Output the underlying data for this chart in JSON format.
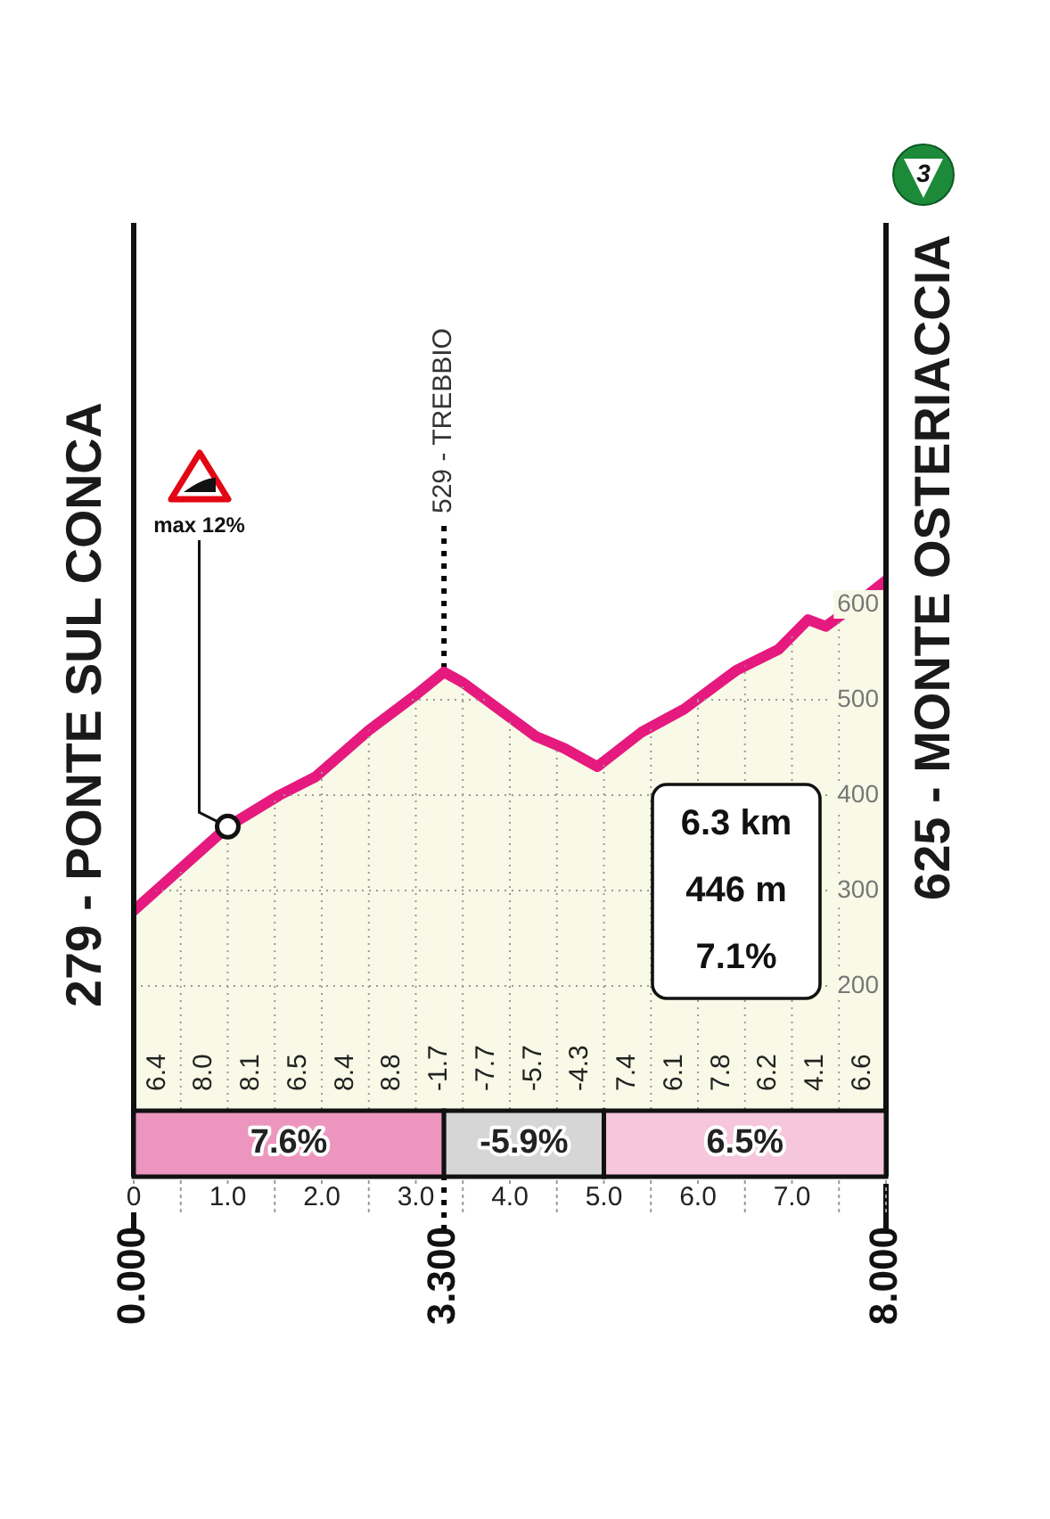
{
  "chart_data": {
    "type": "area",
    "color": "#e6197f",
    "x": [
      0,
      1.0,
      1.55,
      1.93,
      2.5,
      3.0,
      3.3,
      3.5,
      4.27,
      4.58,
      4.93,
      5.4,
      5.85,
      6.41,
      6.86,
      7.17,
      7.36,
      7.68,
      8.0
    ],
    "values": [
      279,
      367,
      400,
      419,
      468,
      505,
      529,
      518,
      462,
      449,
      430,
      466,
      490,
      531,
      553,
      584,
      577,
      600,
      625
    ],
    "xlim": [
      0,
      8
    ],
    "ylim": [
      0,
      1000
    ],
    "xticks": [
      {
        "value": 0,
        "label": "0"
      },
      {
        "value": 0.5,
        "label": null
      },
      {
        "value": 1,
        "label": "1.0"
      },
      {
        "value": 1.5,
        "label": null
      },
      {
        "value": 2,
        "label": "2.0"
      },
      {
        "value": 2.5,
        "label": null
      },
      {
        "value": 3,
        "label": "3.0"
      },
      {
        "value": 3.5,
        "label": null
      },
      {
        "value": 4,
        "label": "4.0"
      },
      {
        "value": 4.5,
        "label": null
      },
      {
        "value": 5,
        "label": "5.0"
      },
      {
        "value": 5.5,
        "label": null
      },
      {
        "value": 6,
        "label": "6.0"
      },
      {
        "value": 6.5,
        "label": null
      },
      {
        "value": 7,
        "label": "7.0"
      },
      {
        "value": 7.5,
        "label": null
      },
      {
        "value": 8,
        "label": null
      }
    ],
    "x2lim": [
      0,
      8
    ],
    "x2ticks": [
      {
        "value": 0,
        "label": "0.000"
      },
      {
        "value": 3.3,
        "label": "3.300"
      },
      {
        "value": 8,
        "label": "8.000"
      }
    ],
    "yticks": [
      200,
      300,
      400,
      500,
      600
    ],
    "grid": true,
    "ref_lines": [
      {
        "axis": "x",
        "value": 3.3,
        "label": "529 - TREBBIO",
        "line_style": "dotted",
        "color": "#000000"
      }
    ],
    "bands": [
      {
        "axis": "x",
        "from": 0,
        "to": 3.3,
        "label": "7.6%",
        "color": "#ec96bf"
      },
      {
        "axis": "x",
        "from": 3.3,
        "to": 5.0,
        "label": "-5.9%",
        "color": "#d6d6d6"
      },
      {
        "axis": "x",
        "from": 5.0,
        "to": 8.0,
        "label": "6.5%",
        "color": "#f5c6dc"
      }
    ],
    "annotations": [
      "3",
      "6.3 km",
      "446 m",
      "7.1%",
      {
        "text": "279 - PONTE SUL CONCA",
        "x": 0,
        "y": 279
      },
      {
        "text": "625 - MONTE OSTERIACCIA",
        "x": 8,
        "y": 625
      },
      {
        "text": "max 12%",
        "x": 1.0,
        "y": 367
      },
      "6.4",
      "8.0",
      "8.1",
      "6.5",
      "8.4",
      "8.8",
      "-1.7",
      "-7.7",
      "-5.7",
      "-4.3",
      "7.4",
      "6.1",
      "7.8",
      "6.2",
      "4.1",
      "6.6"
    ]
  }
}
